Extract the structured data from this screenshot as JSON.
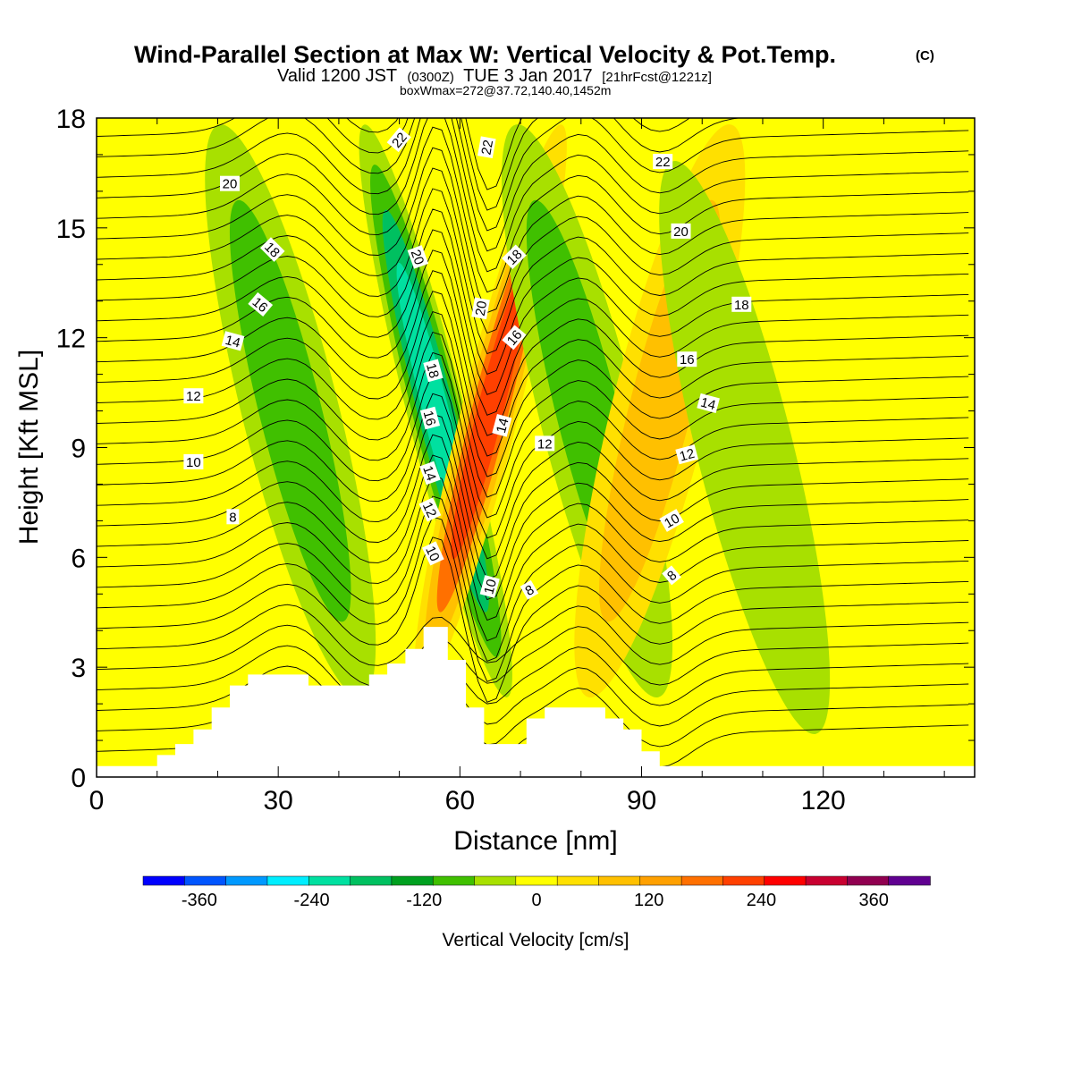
{
  "chart_data": {
    "type": "heatmap",
    "title": "Wind-Parallel Section at Max W: Vertical Velocity & Pot.Temp.",
    "title_mark": "(C)",
    "subtitle": {
      "a": "Valid 1200 JST",
      "b": "(0300Z)",
      "c": "TUE 3 Jan 2017",
      "d": "[21hrFcst@1221z]"
    },
    "subtitle2": "boxWmax=272@37.72,140.40,1452m",
    "xlabel": "Distance [nm]",
    "ylabel": "Height [Kft MSL]",
    "xlim": [
      0,
      145
    ],
    "ylim": [
      0,
      18
    ],
    "x_ticks": [
      0,
      30,
      60,
      90,
      120
    ],
    "y_ticks": [
      0,
      3,
      6,
      9,
      12,
      15,
      18
    ],
    "colorbar": {
      "label": "Vertical Velocity [cm/s]",
      "tick_values": [
        -360,
        -240,
        -120,
        0,
        120,
        240,
        360
      ],
      "range": [
        -420,
        420
      ],
      "colors": [
        "#0000ff",
        "#0055ff",
        "#0099ff",
        "#00eeff",
        "#00e0a0",
        "#00c060",
        "#00a020",
        "#40c000",
        "#a8e000",
        "#ffff00",
        "#ffe000",
        "#ffc000",
        "#ffa000",
        "#ff7000",
        "#ff4000",
        "#ff0000",
        "#c80030",
        "#900050",
        "#600090"
      ]
    },
    "w_features": [
      {
        "x": 32,
        "z": 10,
        "w": -150
      },
      {
        "x": 56,
        "z": 10,
        "w": -270
      },
      {
        "x": 65,
        "z": 10,
        "w": 290
      },
      {
        "x": 81,
        "z": 10,
        "w": -130
      },
      {
        "x": 93,
        "z": 10,
        "w": 140
      },
      {
        "x": 107,
        "z": 9,
        "w": -90
      }
    ],
    "terrain": [
      [
        0,
        0.3
      ],
      [
        10,
        0.3
      ],
      [
        10,
        0.6
      ],
      [
        13,
        0.6
      ],
      [
        13,
        0.9
      ],
      [
        16,
        0.9
      ],
      [
        16,
        1.3
      ],
      [
        19,
        1.3
      ],
      [
        19,
        1.9
      ],
      [
        22,
        1.9
      ],
      [
        22,
        2.5
      ],
      [
        25,
        2.5
      ],
      [
        25,
        2.8
      ],
      [
        35,
        2.8
      ],
      [
        35,
        2.5
      ],
      [
        45,
        2.5
      ],
      [
        45,
        2.8
      ],
      [
        48,
        2.8
      ],
      [
        48,
        3.1
      ],
      [
        51,
        3.1
      ],
      [
        51,
        3.5
      ],
      [
        54,
        3.5
      ],
      [
        54,
        4.1
      ],
      [
        58,
        4.1
      ],
      [
        58,
        3.2
      ],
      [
        61,
        3.2
      ],
      [
        61,
        1.9
      ],
      [
        64,
        1.9
      ],
      [
        64,
        0.9
      ],
      [
        71,
        0.9
      ],
      [
        71,
        1.6
      ],
      [
        74,
        1.6
      ],
      [
        74,
        1.9
      ],
      [
        84,
        1.9
      ],
      [
        84,
        1.6
      ],
      [
        87,
        1.6
      ],
      [
        87,
        1.3
      ],
      [
        90,
        1.3
      ],
      [
        90,
        0.7
      ],
      [
        93,
        0.7
      ],
      [
        93,
        0.3
      ],
      [
        145,
        0.3
      ]
    ],
    "isentrope_labels": [
      {
        "text": "22",
        "x": 50,
        "z": 17.4,
        "rot": -50
      },
      {
        "text": "22",
        "x": 64.5,
        "z": 17.2,
        "rot": -80
      },
      {
        "text": "22",
        "x": 93.5,
        "z": 16.8,
        "rot": 0
      },
      {
        "text": "20",
        "x": 22,
        "z": 16.2,
        "rot": 0
      },
      {
        "text": "20",
        "x": 53,
        "z": 14.2,
        "rot": 70
      },
      {
        "text": "20",
        "x": 63.5,
        "z": 12.8,
        "rot": -80
      },
      {
        "text": "20",
        "x": 96.5,
        "z": 14.9,
        "rot": 0
      },
      {
        "text": "18",
        "x": 29,
        "z": 14.4,
        "rot": 45
      },
      {
        "text": "18",
        "x": 69,
        "z": 14.2,
        "rot": -45
      },
      {
        "text": "18",
        "x": 106.5,
        "z": 12.9,
        "rot": 0
      },
      {
        "text": "18",
        "x": 55.5,
        "z": 11.1,
        "rot": 75
      },
      {
        "text": "16",
        "x": 27,
        "z": 12.9,
        "rot": 40
      },
      {
        "text": "16",
        "x": 69,
        "z": 12.0,
        "rot": -50
      },
      {
        "text": "16",
        "x": 97.5,
        "z": 11.4,
        "rot": 0
      },
      {
        "text": "16",
        "x": 55,
        "z": 9.8,
        "rot": 75
      },
      {
        "text": "14",
        "x": 22.5,
        "z": 11.9,
        "rot": 15
      },
      {
        "text": "14",
        "x": 67,
        "z": 9.6,
        "rot": -75
      },
      {
        "text": "14",
        "x": 101,
        "z": 10.2,
        "rot": 15
      },
      {
        "text": "14",
        "x": 55,
        "z": 8.3,
        "rot": 70
      },
      {
        "text": "12",
        "x": 16,
        "z": 10.4,
        "rot": 0
      },
      {
        "text": "12",
        "x": 74,
        "z": 9.1,
        "rot": 0
      },
      {
        "text": "12",
        "x": 97.5,
        "z": 8.8,
        "rot": -15
      },
      {
        "text": "12",
        "x": 55,
        "z": 7.3,
        "rot": 65
      },
      {
        "text": "10",
        "x": 16,
        "z": 8.6,
        "rot": 0
      },
      {
        "text": "10",
        "x": 55.5,
        "z": 6.1,
        "rot": 65
      },
      {
        "text": "10",
        "x": 95,
        "z": 7.0,
        "rot": -30
      },
      {
        "text": "10",
        "x": 65,
        "z": 5.2,
        "rot": -75
      },
      {
        "text": "8",
        "x": 22.5,
        "z": 7.1,
        "rot": 0
      },
      {
        "text": "8",
        "x": 71.5,
        "z": 5.1,
        "rot": -30
      },
      {
        "text": "8",
        "x": 95,
        "z": 5.5,
        "rot": -40
      }
    ]
  }
}
